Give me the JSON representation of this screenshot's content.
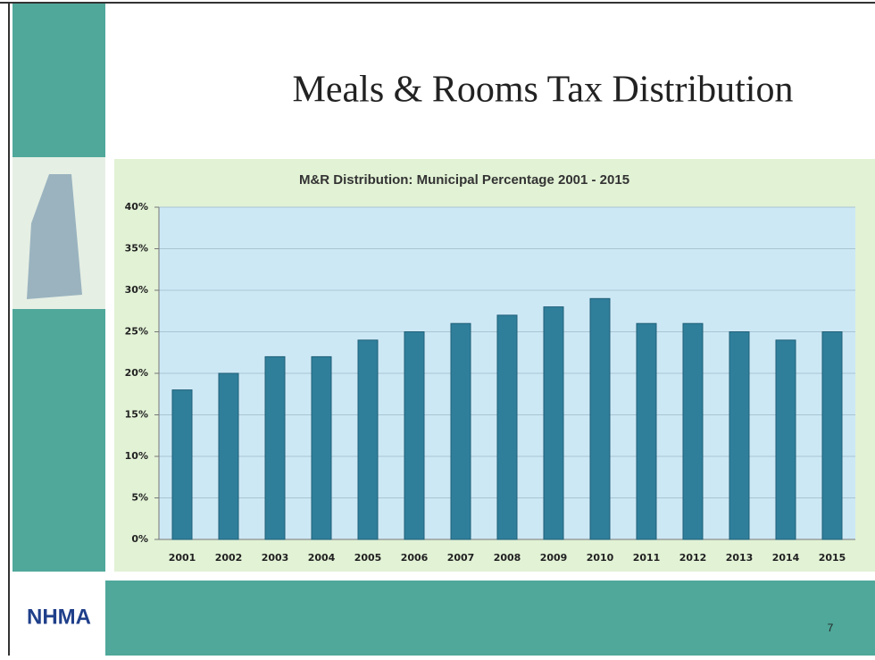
{
  "slide": {
    "title": "Meals & Rooms Tax Distribution",
    "logo": "NHMA",
    "page_number": 7
  },
  "chart_data": {
    "type": "bar",
    "title": "M&R Distribution: Municipal Percentage 2001 - 2015",
    "categories": [
      "2001",
      "2002",
      "2003",
      "2004",
      "2005",
      "2006",
      "2007",
      "2008",
      "2009",
      "2010",
      "2011",
      "2012",
      "2013",
      "2014",
      "2015"
    ],
    "values": [
      18,
      20,
      22,
      22,
      24,
      25,
      26,
      27,
      28,
      29,
      26,
      26,
      25,
      24,
      25
    ],
    "color": "#2f7f9b",
    "ylim": [
      0,
      40
    ],
    "yticks": [
      {
        "value": 0,
        "label": "0%"
      },
      {
        "value": 5,
        "label": "5%"
      },
      {
        "value": 10,
        "label": "10%"
      },
      {
        "value": 15,
        "label": "15%"
      },
      {
        "value": 20,
        "label": "20%"
      },
      {
        "value": 25,
        "label": "25%"
      },
      {
        "value": 30,
        "label": "30%"
      },
      {
        "value": 35,
        "label": "35%"
      },
      {
        "value": 40,
        "label": "40%"
      }
    ],
    "grid": true
  }
}
